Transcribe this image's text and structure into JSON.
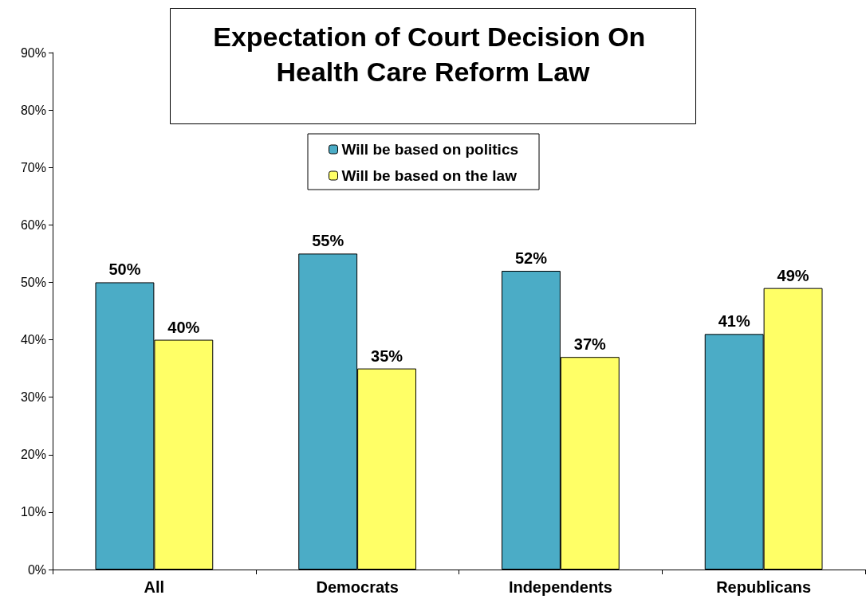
{
  "chart_data": {
    "type": "bar",
    "title": "Expectation of Court Decision On Health Care Reform Law",
    "categories": [
      "All",
      "Democrats",
      "Independents",
      "Republicans"
    ],
    "series": [
      {
        "name": "Will be based on politics",
        "color": "#4bacc6",
        "values": [
          50,
          55,
          52,
          41
        ],
        "value_labels": [
          "50%",
          "55%",
          "52%",
          "41%"
        ]
      },
      {
        "name": "Will be based on the law",
        "color": "#ffff66",
        "values": [
          40,
          35,
          37,
          49
        ],
        "value_labels": [
          "40%",
          "35%",
          "37%",
          "49%"
        ]
      }
    ],
    "ylim": [
      0,
      90
    ],
    "yticks": [
      {
        "value": 0,
        "label": "0%"
      },
      {
        "value": 10,
        "label": "10%"
      },
      {
        "value": 20,
        "label": "20%"
      },
      {
        "value": 30,
        "label": "30%"
      },
      {
        "value": 40,
        "label": "40%"
      },
      {
        "value": 50,
        "label": "50%"
      },
      {
        "value": 60,
        "label": "60%"
      },
      {
        "value": 70,
        "label": "70%"
      },
      {
        "value": 80,
        "label": "80%"
      },
      {
        "value": 90,
        "label": "90%"
      }
    ],
    "grid": false,
    "legend": "top"
  }
}
